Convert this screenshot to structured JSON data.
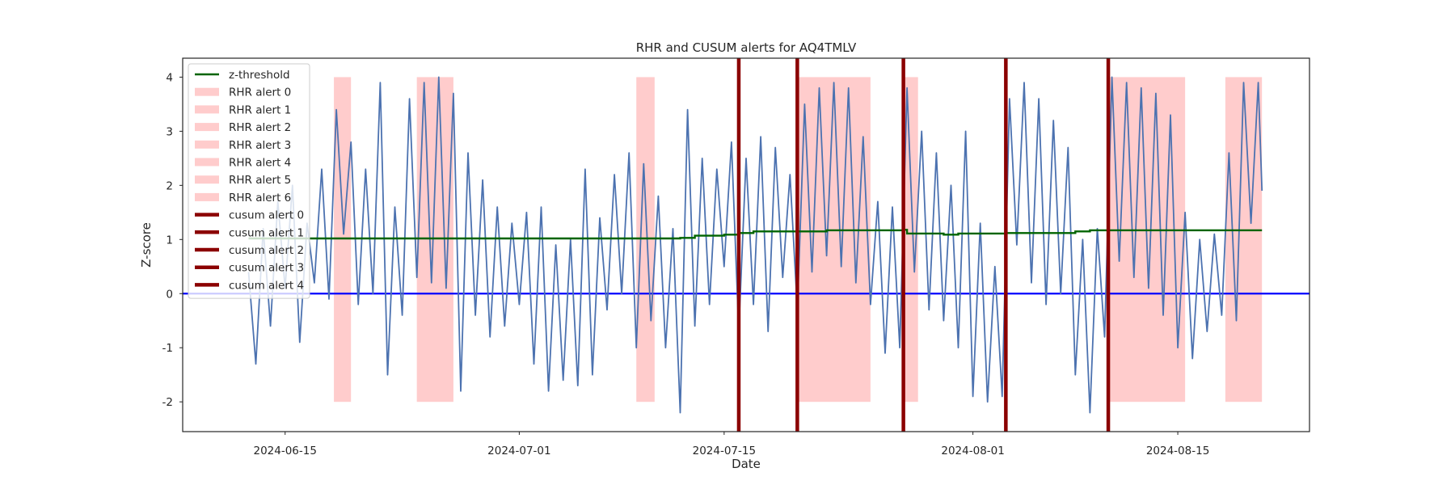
{
  "chart_data": {
    "type": "line",
    "title": "RHR and CUSUM alerts for AQ4TMLV",
    "xlabel": "Date",
    "ylabel": "Z-score",
    "x_range": [
      "2024-06-08",
      "2024-08-24"
    ],
    "ylim": [
      -2.55,
      4.35
    ],
    "grid": false,
    "legend_position": "upper-left",
    "x_ticks": [
      "2024-06-15",
      "2024-07-01",
      "2024-07-15",
      "2024-08-01",
      "2024-08-15"
    ],
    "y_ticks": [
      -2,
      -1,
      0,
      1,
      2,
      3,
      4
    ],
    "colors": {
      "zscore": "#4c72b0",
      "threshold": "#006400",
      "zero_line": "#0000ff",
      "rhr_alert": "#ffcccc",
      "cusum_alert": "#8b0000"
    },
    "legend": [
      {
        "label": "z-threshold",
        "kind": "line"
      },
      {
        "label": "RHR alert 0",
        "kind": "patch"
      },
      {
        "label": "RHR alert 1",
        "kind": "patch"
      },
      {
        "label": "RHR alert 2",
        "kind": "patch"
      },
      {
        "label": "RHR alert 3",
        "kind": "patch"
      },
      {
        "label": "RHR alert 4",
        "kind": "patch"
      },
      {
        "label": "RHR alert 5",
        "kind": "patch"
      },
      {
        "label": "RHR alert 6",
        "kind": "patch"
      },
      {
        "label": "cusum alert 0",
        "kind": "thick"
      },
      {
        "label": "cusum alert 1",
        "kind": "thick"
      },
      {
        "label": "cusum alert 2",
        "kind": "thick"
      },
      {
        "label": "cusum alert 3",
        "kind": "thick"
      },
      {
        "label": "cusum alert 4",
        "kind": "thick"
      }
    ],
    "rhr_alerts": [
      {
        "start": "2024-06-18 08:00",
        "end": "2024-06-19 12:00",
        "ymin": -2,
        "ymax": 4
      },
      {
        "start": "2024-06-24 00:00",
        "end": "2024-06-26 12:00",
        "ymin": -2,
        "ymax": 4
      },
      {
        "start": "2024-07-09 00:00",
        "end": "2024-07-10 06:00",
        "ymin": -2,
        "ymax": 4
      },
      {
        "start": "2024-07-20 00:00",
        "end": "2024-07-25 00:00",
        "ymin": -2,
        "ymax": 4
      },
      {
        "start": "2024-07-27 06:00",
        "end": "2024-07-28 06:00",
        "ymin": -2,
        "ymax": 4
      },
      {
        "start": "2024-08-10 06:00",
        "end": "2024-08-15 12:00",
        "ymin": -2,
        "ymax": 4
      },
      {
        "start": "2024-08-18 06:00",
        "end": "2024-08-20 18:00",
        "ymin": -2,
        "ymax": 4
      }
    ],
    "cusum_alerts": [
      "2024-07-16 00:00",
      "2024-07-20 00:00",
      "2024-07-27 06:00",
      "2024-08-03 06:00",
      "2024-08-10 06:00"
    ],
    "zero_line": 0,
    "threshold": [
      {
        "x": "2024-06-12 12:00",
        "y": 1.02
      },
      {
        "x": "2024-07-12 00:00",
        "y": 1.03
      },
      {
        "x": "2024-07-13 00:00",
        "y": 1.07
      },
      {
        "x": "2024-07-15 00:00",
        "y": 1.09
      },
      {
        "x": "2024-07-16 00:00",
        "y": 1.12
      },
      {
        "x": "2024-07-17 00:00",
        "y": 1.15
      },
      {
        "x": "2024-07-22 00:00",
        "y": 1.17
      },
      {
        "x": "2024-07-27 06:00",
        "y": 1.18
      },
      {
        "x": "2024-07-27 12:00",
        "y": 1.11
      },
      {
        "x": "2024-07-30 00:00",
        "y": 1.09
      },
      {
        "x": "2024-07-31 00:00",
        "y": 1.11
      },
      {
        "x": "2024-08-03 06:00",
        "y": 1.12
      },
      {
        "x": "2024-08-05 00:00",
        "y": 1.12
      },
      {
        "x": "2024-08-08 00:00",
        "y": 1.15
      },
      {
        "x": "2024-08-09 00:00",
        "y": 1.17
      },
      {
        "x": "2024-08-20 18:00",
        "y": 1.17
      }
    ],
    "zscore_series": [
      {
        "x": "2024-06-12 12:00",
        "y": 0.4
      },
      {
        "x": "2024-06-13 00:00",
        "y": -1.3
      },
      {
        "x": "2024-06-13 12:00",
        "y": 1.2
      },
      {
        "x": "2024-06-14 00:00",
        "y": -0.6
      },
      {
        "x": "2024-06-14 12:00",
        "y": 1.7
      },
      {
        "x": "2024-06-15 00:00",
        "y": 0.1
      },
      {
        "x": "2024-06-15 12:00",
        "y": 2.0
      },
      {
        "x": "2024-06-16 00:00",
        "y": -0.9
      },
      {
        "x": "2024-06-16 12:00",
        "y": 1.3
      },
      {
        "x": "2024-06-17 00:00",
        "y": 0.2
      },
      {
        "x": "2024-06-17 12:00",
        "y": 2.3
      },
      {
        "x": "2024-06-18 00:00",
        "y": -0.1
      },
      {
        "x": "2024-06-18 12:00",
        "y": 3.4
      },
      {
        "x": "2024-06-19 00:00",
        "y": 1.1
      },
      {
        "x": "2024-06-19 12:00",
        "y": 2.8
      },
      {
        "x": "2024-06-20 00:00",
        "y": -0.2
      },
      {
        "x": "2024-06-20 12:00",
        "y": 2.3
      },
      {
        "x": "2024-06-21 00:00",
        "y": 0.0
      },
      {
        "x": "2024-06-21 12:00",
        "y": 3.9
      },
      {
        "x": "2024-06-22 00:00",
        "y": -1.5
      },
      {
        "x": "2024-06-22 12:00",
        "y": 1.6
      },
      {
        "x": "2024-06-23 00:00",
        "y": -0.4
      },
      {
        "x": "2024-06-23 12:00",
        "y": 3.6
      },
      {
        "x": "2024-06-24 00:00",
        "y": 0.3
      },
      {
        "x": "2024-06-24 12:00",
        "y": 3.9
      },
      {
        "x": "2024-06-25 00:00",
        "y": 0.2
      },
      {
        "x": "2024-06-25 12:00",
        "y": 4.0
      },
      {
        "x": "2024-06-26 00:00",
        "y": 0.1
      },
      {
        "x": "2024-06-26 12:00",
        "y": 3.7
      },
      {
        "x": "2024-06-27 00:00",
        "y": -1.8
      },
      {
        "x": "2024-06-27 12:00",
        "y": 2.6
      },
      {
        "x": "2024-06-28 00:00",
        "y": -0.4
      },
      {
        "x": "2024-06-28 12:00",
        "y": 2.1
      },
      {
        "x": "2024-06-29 00:00",
        "y": -0.8
      },
      {
        "x": "2024-06-29 12:00",
        "y": 1.6
      },
      {
        "x": "2024-06-30 00:00",
        "y": -0.6
      },
      {
        "x": "2024-06-30 12:00",
        "y": 1.3
      },
      {
        "x": "2024-07-01 00:00",
        "y": -0.2
      },
      {
        "x": "2024-07-01 12:00",
        "y": 1.5
      },
      {
        "x": "2024-07-02 00:00",
        "y": -1.3
      },
      {
        "x": "2024-07-02 12:00",
        "y": 1.6
      },
      {
        "x": "2024-07-03 00:00",
        "y": -1.8
      },
      {
        "x": "2024-07-03 12:00",
        "y": 0.9
      },
      {
        "x": "2024-07-04 00:00",
        "y": -1.6
      },
      {
        "x": "2024-07-04 12:00",
        "y": 1.0
      },
      {
        "x": "2024-07-05 00:00",
        "y": -1.7
      },
      {
        "x": "2024-07-05 12:00",
        "y": 2.3
      },
      {
        "x": "2024-07-06 00:00",
        "y": -1.5
      },
      {
        "x": "2024-07-06 12:00",
        "y": 1.4
      },
      {
        "x": "2024-07-07 00:00",
        "y": -0.3
      },
      {
        "x": "2024-07-07 12:00",
        "y": 2.2
      },
      {
        "x": "2024-07-08 00:00",
        "y": 0.0
      },
      {
        "x": "2024-07-08 12:00",
        "y": 2.6
      },
      {
        "x": "2024-07-09 00:00",
        "y": -1.0
      },
      {
        "x": "2024-07-09 12:00",
        "y": 2.4
      },
      {
        "x": "2024-07-10 00:00",
        "y": -0.5
      },
      {
        "x": "2024-07-10 12:00",
        "y": 1.8
      },
      {
        "x": "2024-07-11 00:00",
        "y": -1.0
      },
      {
        "x": "2024-07-11 12:00",
        "y": 1.2
      },
      {
        "x": "2024-07-12 00:00",
        "y": -2.2
      },
      {
        "x": "2024-07-12 12:00",
        "y": 3.4
      },
      {
        "x": "2024-07-13 00:00",
        "y": -0.6
      },
      {
        "x": "2024-07-13 12:00",
        "y": 2.5
      },
      {
        "x": "2024-07-14 00:00",
        "y": -0.2
      },
      {
        "x": "2024-07-14 12:00",
        "y": 2.3
      },
      {
        "x": "2024-07-15 00:00",
        "y": 0.5
      },
      {
        "x": "2024-07-15 12:00",
        "y": 2.8
      },
      {
        "x": "2024-07-16 00:00",
        "y": -0.7
      },
      {
        "x": "2024-07-16 12:00",
        "y": 2.5
      },
      {
        "x": "2024-07-17 00:00",
        "y": -0.2
      },
      {
        "x": "2024-07-17 12:00",
        "y": 2.9
      },
      {
        "x": "2024-07-18 00:00",
        "y": -0.7
      },
      {
        "x": "2024-07-18 12:00",
        "y": 2.7
      },
      {
        "x": "2024-07-19 00:00",
        "y": 0.3
      },
      {
        "x": "2024-07-19 12:00",
        "y": 2.2
      },
      {
        "x": "2024-07-20 00:00",
        "y": -0.3
      },
      {
        "x": "2024-07-20 12:00",
        "y": 3.5
      },
      {
        "x": "2024-07-21 00:00",
        "y": 0.4
      },
      {
        "x": "2024-07-21 12:00",
        "y": 3.8
      },
      {
        "x": "2024-07-22 00:00",
        "y": 0.7
      },
      {
        "x": "2024-07-22 12:00",
        "y": 3.9
      },
      {
        "x": "2024-07-23 00:00",
        "y": 0.5
      },
      {
        "x": "2024-07-23 12:00",
        "y": 3.8
      },
      {
        "x": "2024-07-24 00:00",
        "y": 0.2
      },
      {
        "x": "2024-07-24 12:00",
        "y": 2.9
      },
      {
        "x": "2024-07-25 00:00",
        "y": -0.2
      },
      {
        "x": "2024-07-25 12:00",
        "y": 1.7
      },
      {
        "x": "2024-07-26 00:00",
        "y": -1.1
      },
      {
        "x": "2024-07-26 12:00",
        "y": 1.6
      },
      {
        "x": "2024-07-27 00:00",
        "y": -1.0
      },
      {
        "x": "2024-07-27 12:00",
        "y": 3.8
      },
      {
        "x": "2024-07-28 00:00",
        "y": 0.4
      },
      {
        "x": "2024-07-28 12:00",
        "y": 3.0
      },
      {
        "x": "2024-07-29 00:00",
        "y": -0.3
      },
      {
        "x": "2024-07-29 12:00",
        "y": 2.6
      },
      {
        "x": "2024-07-30 00:00",
        "y": -0.5
      },
      {
        "x": "2024-07-30 12:00",
        "y": 2.0
      },
      {
        "x": "2024-07-31 00:00",
        "y": -1.0
      },
      {
        "x": "2024-07-31 12:00",
        "y": 3.0
      },
      {
        "x": "2024-08-01 00:00",
        "y": -1.9
      },
      {
        "x": "2024-08-01 12:00",
        "y": 1.3
      },
      {
        "x": "2024-08-02 00:00",
        "y": -2.0
      },
      {
        "x": "2024-08-02 12:00",
        "y": 0.5
      },
      {
        "x": "2024-08-03 00:00",
        "y": -1.9
      },
      {
        "x": "2024-08-03 12:00",
        "y": 3.6
      },
      {
        "x": "2024-08-04 00:00",
        "y": 0.9
      },
      {
        "x": "2024-08-04 12:00",
        "y": 3.9
      },
      {
        "x": "2024-08-05 00:00",
        "y": 0.2
      },
      {
        "x": "2024-08-05 12:00",
        "y": 3.6
      },
      {
        "x": "2024-08-06 00:00",
        "y": -0.2
      },
      {
        "x": "2024-08-06 12:00",
        "y": 3.2
      },
      {
        "x": "2024-08-07 00:00",
        "y": 0.0
      },
      {
        "x": "2024-08-07 12:00",
        "y": 2.7
      },
      {
        "x": "2024-08-08 00:00",
        "y": -1.5
      },
      {
        "x": "2024-08-08 12:00",
        "y": 1.0
      },
      {
        "x": "2024-08-09 00:00",
        "y": -2.2
      },
      {
        "x": "2024-08-09 12:00",
        "y": 1.2
      },
      {
        "x": "2024-08-10 00:00",
        "y": -0.8
      },
      {
        "x": "2024-08-10 12:00",
        "y": 4.0
      },
      {
        "x": "2024-08-11 00:00",
        "y": 0.6
      },
      {
        "x": "2024-08-11 12:00",
        "y": 3.9
      },
      {
        "x": "2024-08-12 00:00",
        "y": 0.3
      },
      {
        "x": "2024-08-12 12:00",
        "y": 3.8
      },
      {
        "x": "2024-08-13 00:00",
        "y": 0.1
      },
      {
        "x": "2024-08-13 12:00",
        "y": 3.7
      },
      {
        "x": "2024-08-14 00:00",
        "y": -0.4
      },
      {
        "x": "2024-08-14 12:00",
        "y": 3.3
      },
      {
        "x": "2024-08-15 00:00",
        "y": -1.0
      },
      {
        "x": "2024-08-15 12:00",
        "y": 1.5
      },
      {
        "x": "2024-08-16 00:00",
        "y": -1.2
      },
      {
        "x": "2024-08-16 12:00",
        "y": 1.0
      },
      {
        "x": "2024-08-17 00:00",
        "y": -0.7
      },
      {
        "x": "2024-08-17 12:00",
        "y": 1.1
      },
      {
        "x": "2024-08-18 00:00",
        "y": -0.4
      },
      {
        "x": "2024-08-18 12:00",
        "y": 2.6
      },
      {
        "x": "2024-08-19 00:00",
        "y": -0.5
      },
      {
        "x": "2024-08-19 12:00",
        "y": 3.9
      },
      {
        "x": "2024-08-20 00:00",
        "y": 1.3
      },
      {
        "x": "2024-08-20 12:00",
        "y": 3.9
      },
      {
        "x": "2024-08-20 18:00",
        "y": 1.9
      }
    ]
  }
}
